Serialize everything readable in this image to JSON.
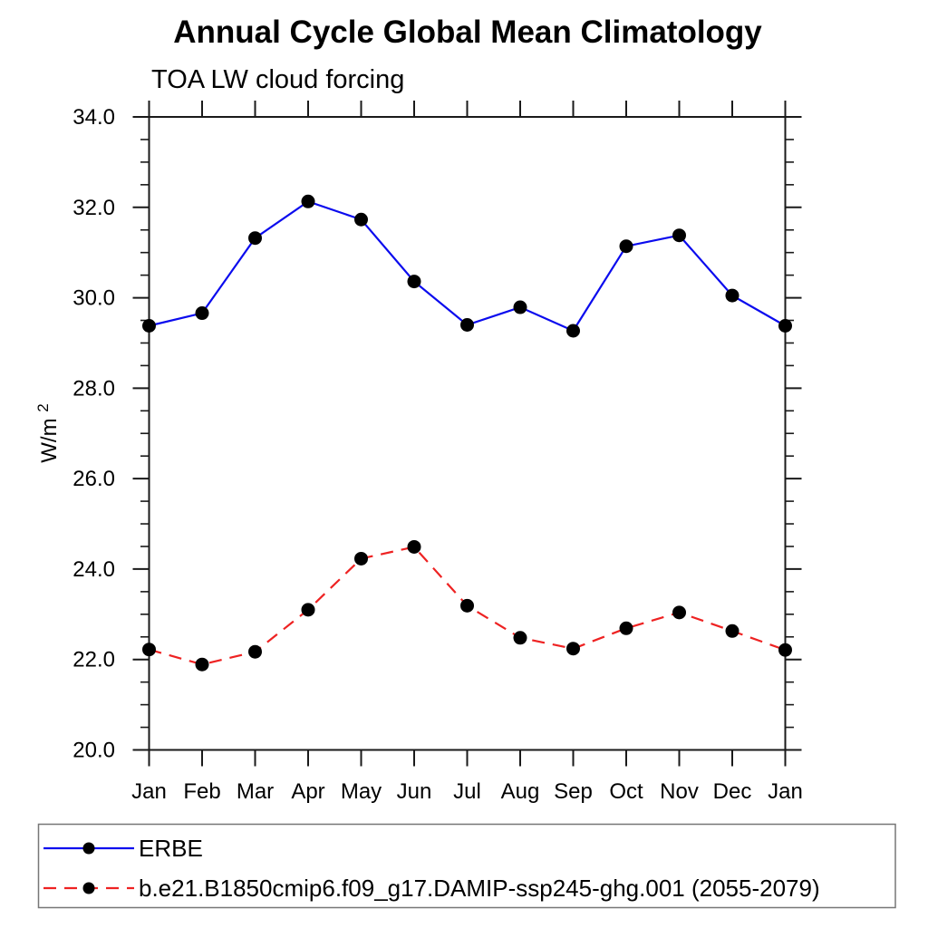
{
  "chart_data": {
    "type": "line",
    "title": "Annual Cycle Global Mean Climatology",
    "subtitle": "TOA LW cloud forcing",
    "ylabel_base": "W/m",
    "ylabel_exponent": "2",
    "categories": [
      "Jan",
      "Feb",
      "Mar",
      "Apr",
      "May",
      "Jun",
      "Jul",
      "Aug",
      "Sep",
      "Oct",
      "Nov",
      "Dec",
      "Jan"
    ],
    "y_tick_labels": [
      "20.0",
      "22.0",
      "24.0",
      "26.0",
      "28.0",
      "30.0",
      "32.0",
      "34.0"
    ],
    "ylim": [
      20.0,
      34.0
    ],
    "y_major_step": 2.0,
    "y_minor_step": 0.5,
    "grid": "off",
    "legend_position": "bottom-left",
    "series": [
      {
        "name": "ERBE",
        "line_style": "solid",
        "color": "#0b0bee",
        "marker": "circle",
        "marker_color": "#000000",
        "values": [
          29.38,
          29.66,
          31.32,
          32.13,
          31.73,
          30.36,
          29.4,
          29.79,
          29.27,
          31.14,
          31.38,
          30.05,
          29.38
        ]
      },
      {
        "name": "b.e21.B1850cmip6.f09_g17.DAMIP-ssp245-ghg.001 (2055-2079)",
        "line_style": "dashed",
        "color": "#ee2222",
        "marker": "circle",
        "marker_color": "#000000",
        "values": [
          22.22,
          21.89,
          22.17,
          23.1,
          24.23,
          24.49,
          23.19,
          22.48,
          22.24,
          22.69,
          23.04,
          22.63,
          22.21
        ]
      }
    ],
    "colors": {
      "axis": "#1a1a1a",
      "text": "#000000",
      "legend_border": "#777777",
      "background": "#ffffff"
    }
  }
}
